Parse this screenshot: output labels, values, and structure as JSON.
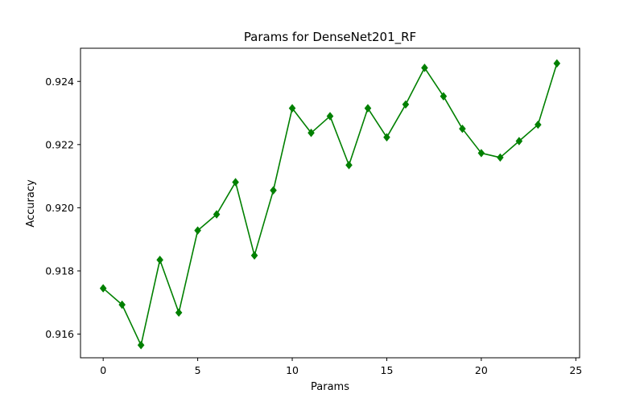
{
  "chart_data": {
    "type": "line",
    "title": "Params for DenseNet201_RF",
    "xlabel": "Params",
    "ylabel": "Accuracy",
    "xlim": [
      -1.2,
      25.2
    ],
    "ylim": [
      0.91525,
      0.92505
    ],
    "xticks": [
      0,
      5,
      10,
      15,
      20,
      25
    ],
    "xtick_labels": [
      "0",
      "5",
      "10",
      "15",
      "20",
      "25"
    ],
    "yticks": [
      0.916,
      0.918,
      0.92,
      0.922,
      0.924
    ],
    "ytick_labels": [
      "0.916",
      "0.918",
      "0.920",
      "0.922",
      "0.924"
    ],
    "grid": false,
    "series": [
      {
        "color": "#008000",
        "marker": "diamond",
        "x": [
          0,
          1,
          2,
          3,
          4,
          5,
          6,
          7,
          8,
          9,
          10,
          11,
          12,
          13,
          14,
          15,
          16,
          17,
          18,
          19,
          20,
          21,
          22,
          23,
          24
        ],
        "values": [
          0.91745,
          0.91693,
          0.91565,
          0.91835,
          0.91668,
          0.91928,
          0.91979,
          0.92081,
          0.91849,
          0.92055,
          0.92315,
          0.92237,
          0.9229,
          0.92135,
          0.92315,
          0.92223,
          0.92327,
          0.92443,
          0.92353,
          0.9225,
          0.92173,
          0.92159,
          0.92211,
          0.92263,
          0.92457
        ]
      }
    ]
  }
}
